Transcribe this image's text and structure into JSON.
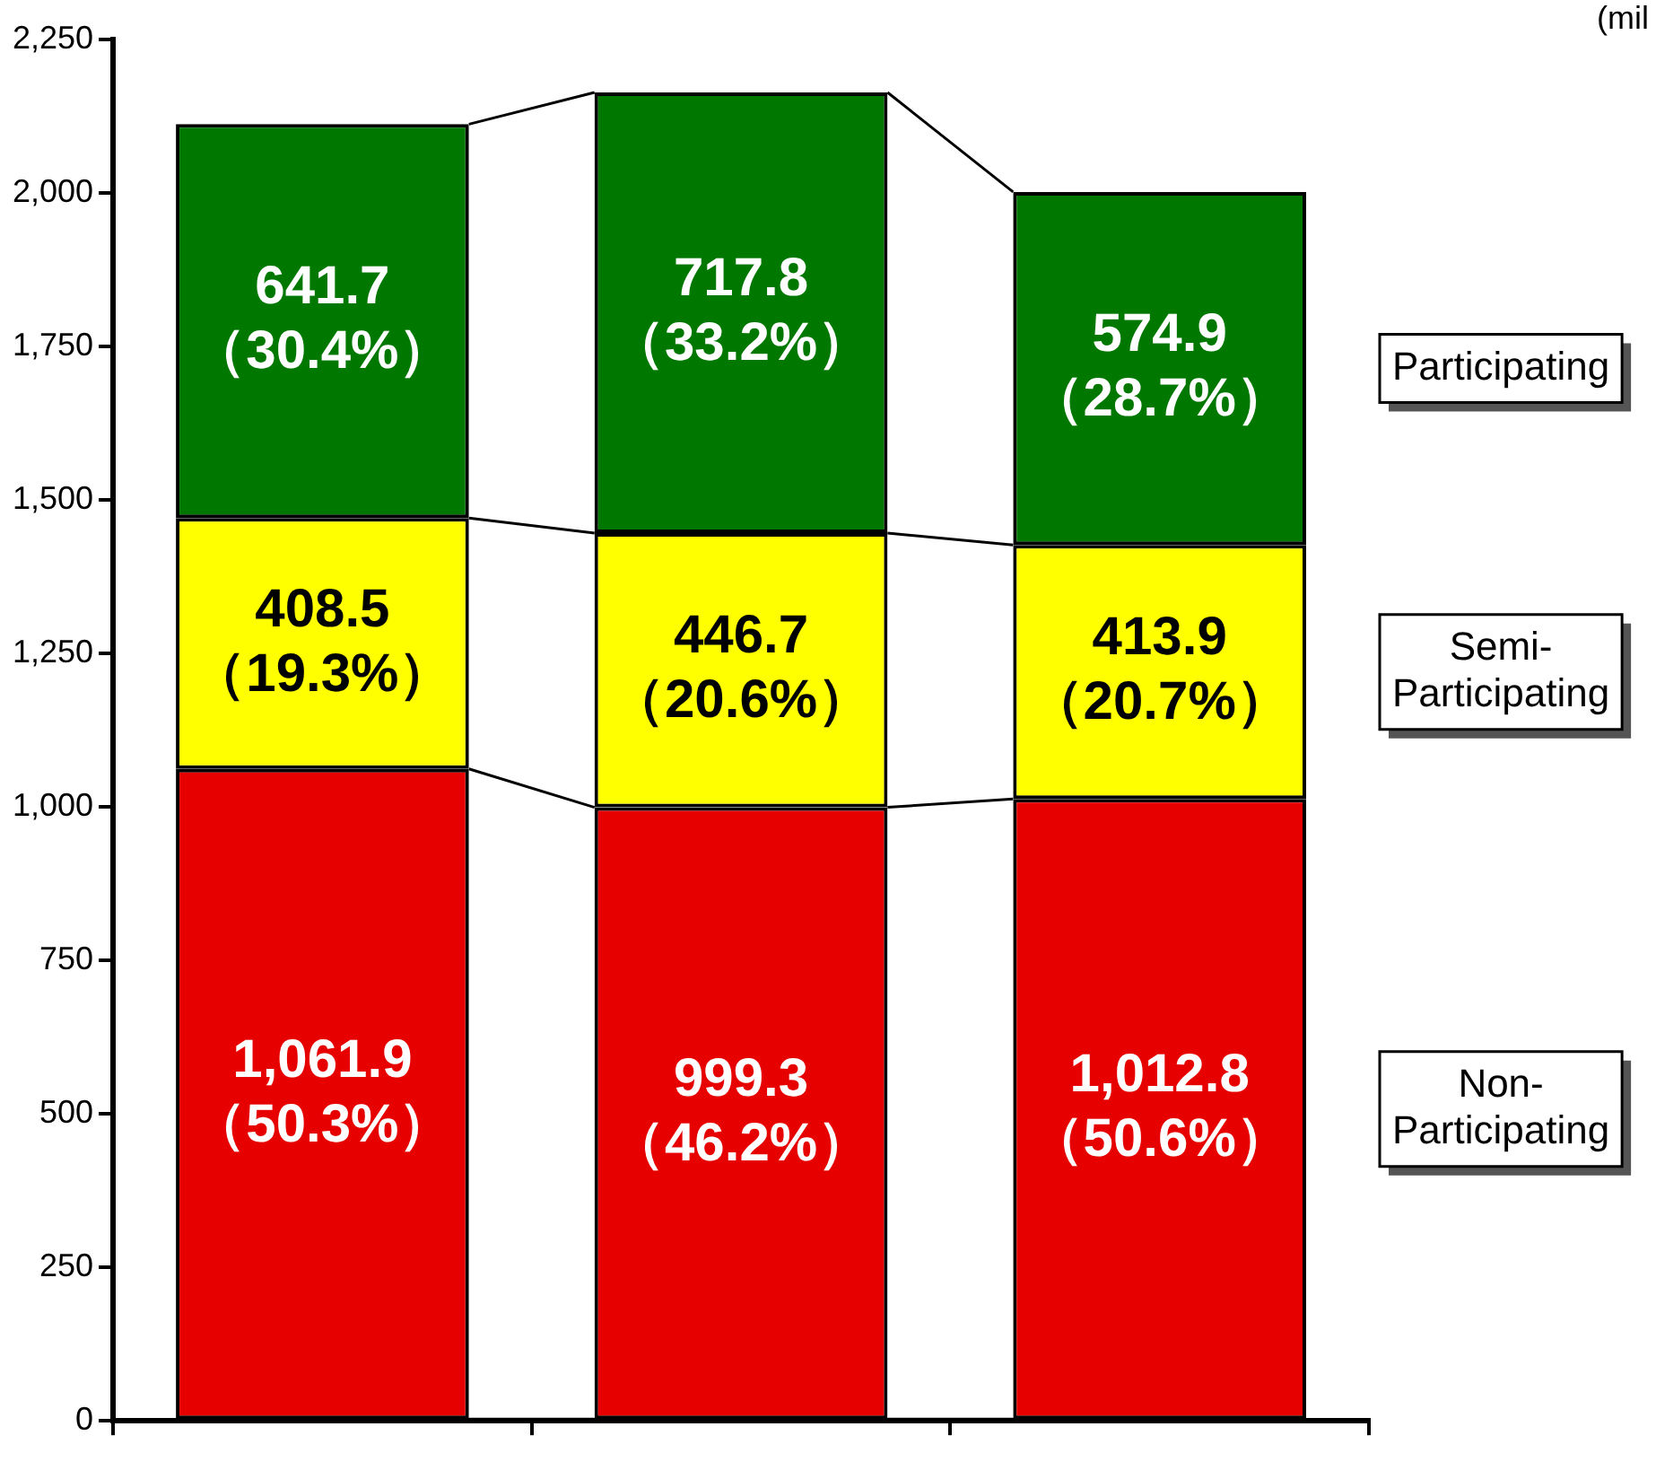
{
  "chart_data": {
    "type": "bar",
    "stacked": true,
    "categories": [
      null,
      null,
      null
    ],
    "series": [
      {
        "name": "Non-Participating",
        "color": "#e60000",
        "values": [
          1061.9,
          999.3,
          1012.8
        ],
        "value_labels": [
          "1,061.9\n（50.3%）",
          "999.3\n（46.2%）",
          "1,012.8\n（50.6%）"
        ]
      },
      {
        "name": "Semi-Participating",
        "color": "#ffff00",
        "values": [
          408.5,
          446.7,
          413.9
        ],
        "value_labels": [
          "408.5\n（19.3%）",
          "446.7\n（20.6%）",
          "413.9\n（20.7%）"
        ]
      },
      {
        "name": "Participating",
        "color": "#007800",
        "values": [
          641.7,
          717.8,
          574.9
        ],
        "value_labels": [
          "641.7\n（30.4%）",
          "717.8\n（33.2%）",
          "574.9\n（28.7%）"
        ]
      }
    ],
    "ylim": [
      0,
      2250
    ],
    "yticks": [
      0,
      250,
      500,
      750,
      {
        "value": 1000,
        "label": "1,000"
      },
      {
        "value": 1250,
        "label": "1,250"
      },
      {
        "value": 1500,
        "label": "1,500"
      },
      {
        "value": 1750,
        "label": "1,750"
      },
      {
        "value": 2000,
        "label": "2,000"
      },
      {
        "value": 2250,
        "label": "2,250"
      }
    ],
    "grid": false,
    "annotations": [
      "(mil"
    ]
  }
}
